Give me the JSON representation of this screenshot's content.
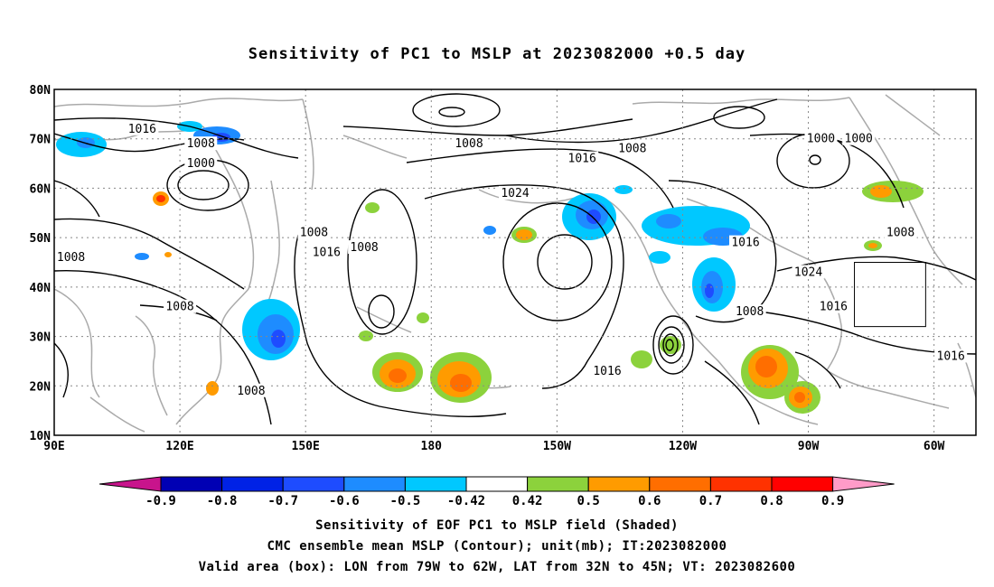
{
  "title": "Sensitivity of PC1 to MSLP at 2023082000 +0.5 day",
  "map": {
    "lon_range": [
      90,
      310
    ],
    "lat_range": [
      10,
      80
    ],
    "lat_labels": [
      "80N",
      "70N",
      "60N",
      "50N",
      "40N",
      "30N",
      "20N",
      "10N"
    ],
    "lon_labels": [
      "90E",
      "120E",
      "150E",
      "180",
      "150W",
      "120W",
      "90W",
      "60W"
    ],
    "grid": true,
    "contour_color": "#000000",
    "coastline_color": "#aaaaaa",
    "contour_labels": [
      {
        "text": "1016",
        "lon": 111,
        "lat": 72
      },
      {
        "text": "1008",
        "lon": 125,
        "lat": 69
      },
      {
        "text": "1000",
        "lon": 125,
        "lat": 65
      },
      {
        "text": "1008",
        "lon": 94,
        "lat": 46
      },
      {
        "text": "1008",
        "lon": 152,
        "lat": 51
      },
      {
        "text": "1016",
        "lon": 155,
        "lat": 47
      },
      {
        "text": "1008",
        "lon": 164,
        "lat": 48
      },
      {
        "text": "1008",
        "lon": 120,
        "lat": 36
      },
      {
        "text": "1008",
        "lon": 137,
        "lat": 19
      },
      {
        "text": "1008",
        "lon": 189,
        "lat": 69
      },
      {
        "text": "1016",
        "lon": 216,
        "lat": 66
      },
      {
        "text": "1024",
        "lon": 200,
        "lat": 59
      },
      {
        "text": "1008",
        "lon": 228,
        "lat": 68
      },
      {
        "text": "1000",
        "lon": 273,
        "lat": 70
      },
      {
        "text": "1000",
        "lon": 282,
        "lat": 70
      },
      {
        "text": "1016",
        "lon": 255,
        "lat": 49
      },
      {
        "text": "1024",
        "lon": 270,
        "lat": 43
      },
      {
        "text": "1008",
        "lon": 256,
        "lat": 35
      },
      {
        "text": "1016",
        "lon": 276,
        "lat": 36
      },
      {
        "text": "1008",
        "lon": 292,
        "lat": 51
      },
      {
        "text": "1016",
        "lon": 304,
        "lat": 26
      },
      {
        "text": "1016",
        "lon": 222,
        "lat": 23
      }
    ],
    "valid_box": {
      "lon_min": 281,
      "lon_max": 298,
      "lat_min": 32,
      "lat_max": 45
    }
  },
  "colorbar": {
    "labels": [
      "-0.9",
      "-0.8",
      "-0.7",
      "-0.6",
      "-0.5",
      "-0.42",
      "0.42",
      "0.5",
      "0.6",
      "0.7",
      "0.8",
      "0.9"
    ],
    "colors": [
      "#0000b4",
      "#0022e6",
      "#1e4cff",
      "#1e8cff",
      "#00c8ff",
      "#ffffff",
      "#8cd23c",
      "#ff9b00",
      "#ff6e00",
      "#ff3200",
      "#ff0000"
    ],
    "left_triangle_color": "#c8148c",
    "right_triangle_color": "#ff9bc8"
  },
  "captions": {
    "line1": "Sensitivity of EOF PC1 to MSLP field (Shaded)",
    "line2": "CMC ensemble mean MSLP (Contour); unit(mb); IT:2023082000",
    "line3": "Valid area (box): LON from 79W to 62W, LAT from 32N to 45N; VT: 2023082600"
  }
}
